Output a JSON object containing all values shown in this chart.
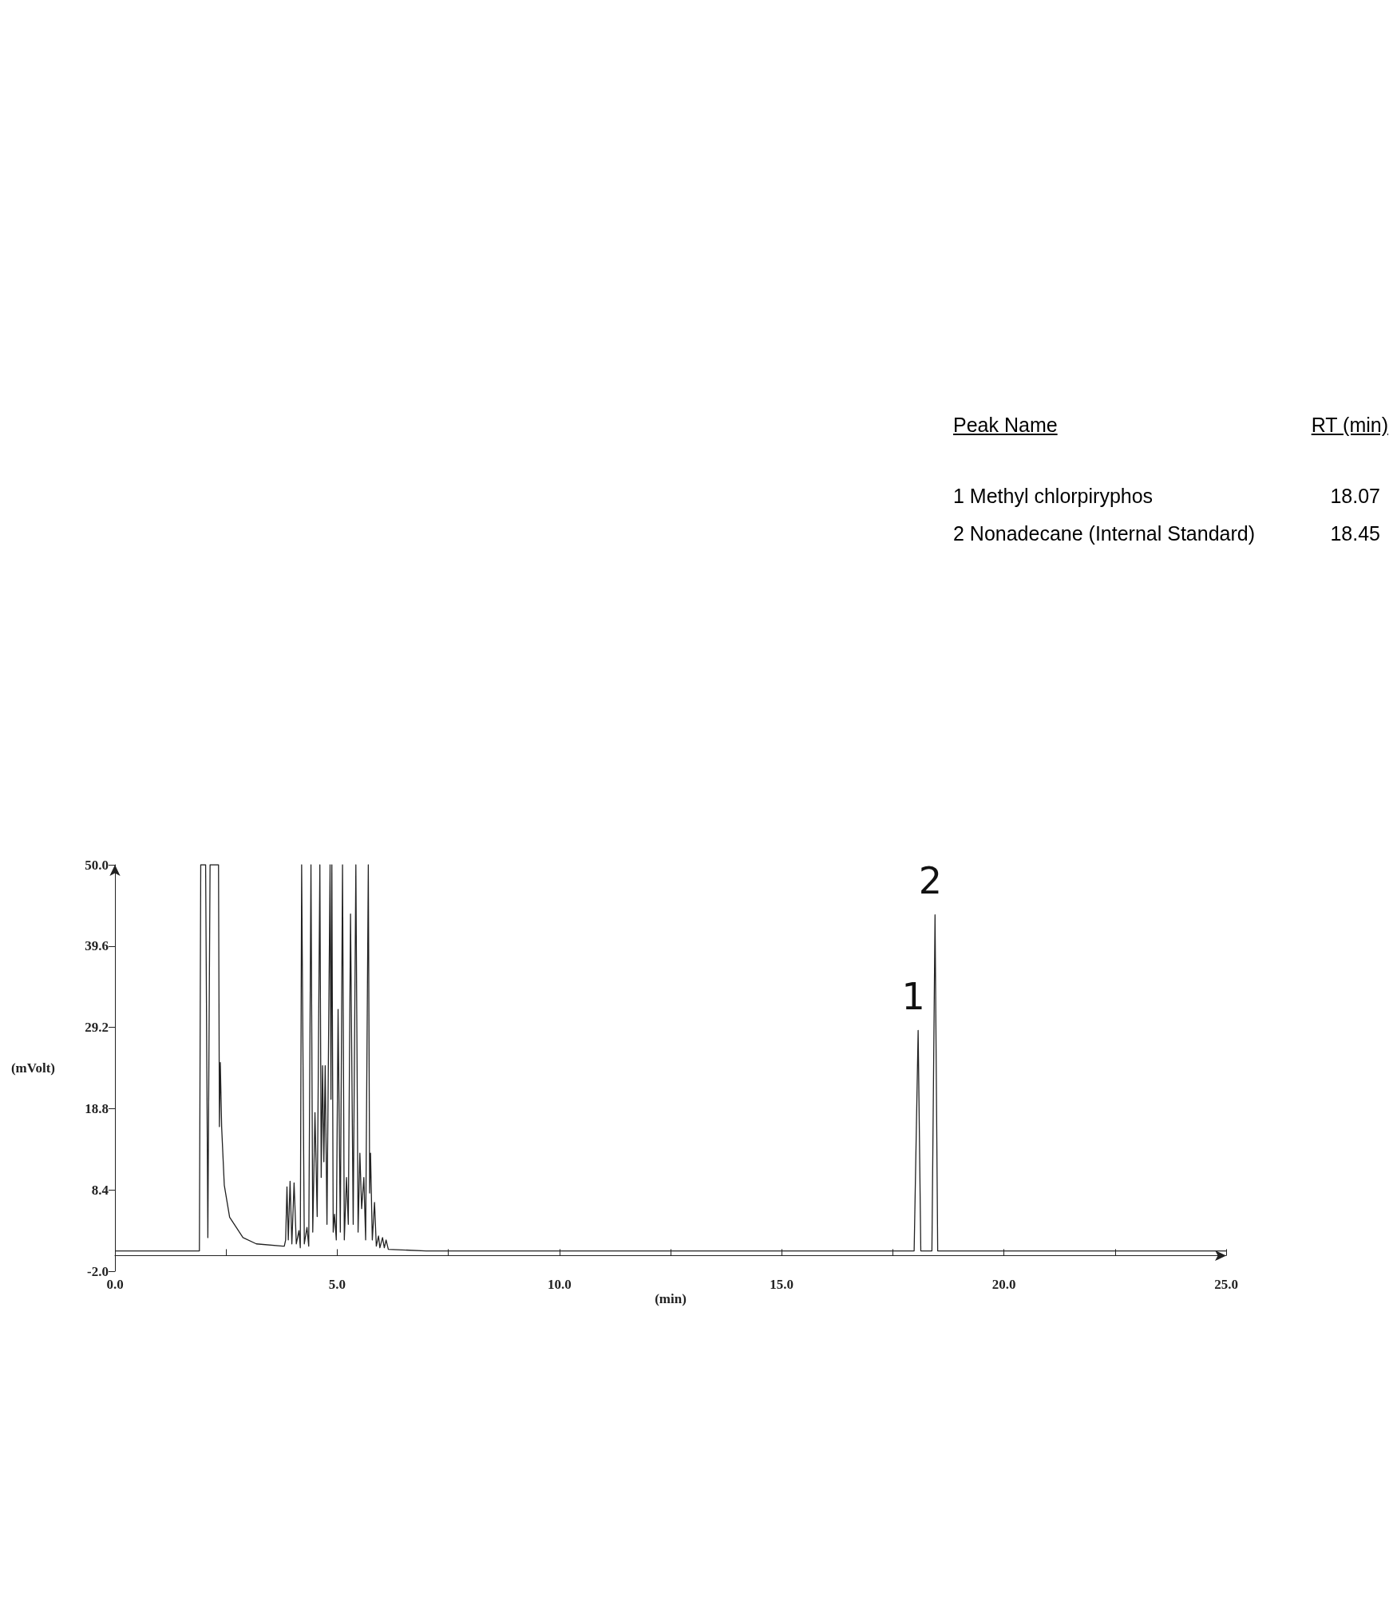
{
  "chart_data": {
    "type": "line",
    "xlabel": "(min)",
    "ylabel": "(mVolt)",
    "color": "#222222",
    "marker": "none",
    "line_style": "solid",
    "grid": false,
    "xlim": [
      0,
      25
    ],
    "ylim": [
      -2,
      50
    ],
    "xticks": [
      {
        "value": 0,
        "label": "0.0"
      },
      {
        "value": 2.5,
        "label": null
      },
      {
        "value": 5,
        "label": "5.0"
      },
      {
        "value": 7.5,
        "label": null
      },
      {
        "value": 10,
        "label": "10.0"
      },
      {
        "value": 12.5,
        "label": null
      },
      {
        "value": 15,
        "label": "15.0"
      },
      {
        "value": 17.5,
        "label": null
      },
      {
        "value": 20,
        "label": "20.0"
      },
      {
        "value": 22.5,
        "label": null
      },
      {
        "value": 25,
        "label": "25.0"
      }
    ],
    "yticks": [
      {
        "value": -2,
        "label": "-2.0"
      },
      8.4,
      18.8,
      29.2,
      39.6,
      {
        "value": 50,
        "label": "50.0"
      }
    ],
    "x": [
      0,
      1.9,
      1.93,
      2.04,
      2.09,
      2.14,
      2.33,
      2.35,
      2.37,
      2.4,
      2.46,
      2.58,
      2.88,
      3.18,
      3.78,
      3.81,
      3.84,
      3.87,
      3.9,
      3.94,
      3.98,
      4.03,
      4.08,
      4.14,
      4.17,
      4.2,
      4.26,
      4.32,
      4.36,
      4.41,
      4.45,
      4.5,
      4.55,
      4.61,
      4.64,
      4.67,
      4.7,
      4.73,
      4.77,
      4.84,
      4.86,
      4.88,
      4.91,
      4.94,
      4.98,
      5.02,
      5.07,
      5.12,
      5.16,
      5.21,
      5.25,
      5.3,
      5.36,
      5.42,
      5.47,
      5.51,
      5.55,
      5.6,
      5.64,
      5.7,
      5.73,
      5.75,
      5.79,
      5.84,
      5.88,
      5.93,
      5.96,
      6.02,
      6.06,
      6.1,
      6.15,
      7,
      17.98,
      18.07,
      18.13,
      18.38,
      18.45,
      18.51,
      25
    ],
    "values": [
      0.6,
      0.6,
      50,
      50,
      2.3,
      50,
      50,
      16.5,
      24.7,
      16.5,
      9,
      4.9,
      2.3,
      1.5,
      1.2,
      1.2,
      2,
      8.8,
      2,
      9.5,
      1.5,
      9.3,
      1.5,
      3.2,
      1,
      50,
      1.5,
      3.6,
      1.2,
      50,
      3,
      18.3,
      5,
      50,
      10,
      24.3,
      12,
      24.3,
      4,
      50,
      20,
      50,
      3,
      5.3,
      2,
      31.5,
      3,
      50,
      2,
      10,
      4,
      43.7,
      4,
      50,
      3,
      13.1,
      6,
      10,
      2,
      50,
      8,
      13.1,
      2,
      6.8,
      1.2,
      2.5,
      1,
      2.3,
      1,
      2,
      0.8,
      0.6,
      0.6,
      28.8,
      0.6,
      0.6,
      43.6,
      0.6,
      0.6
    ],
    "annotations": [
      "Peak Name",
      "RT (min)",
      "1 Methyl chlorpiryphos",
      "18.07",
      "2 Nonadecane (Internal Standard)",
      "18.45",
      {
        "text": "1",
        "x": 18.07,
        "y": 28.8
      },
      {
        "text": "2",
        "x": 18.45,
        "y": 43.6
      }
    ]
  }
}
